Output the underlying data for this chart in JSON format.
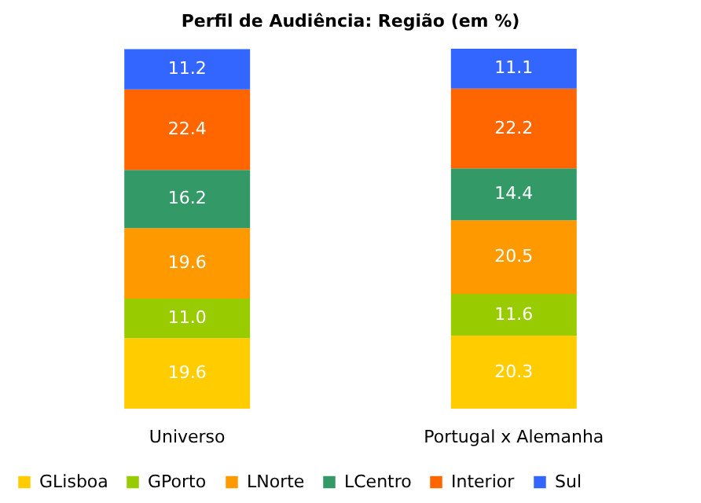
{
  "chart_data": {
    "type": "bar",
    "title": "Perfil de Audiência: Região (em %)",
    "categories": [
      "Universo",
      "Portugal x Alemanha"
    ],
    "stacked": true,
    "legend": "bottom",
    "grid": false,
    "tick_labels": "x",
    "series": [
      {
        "name": "GLisboa",
        "color": "#ffcc00",
        "values": [
          19.6,
          20.3
        ],
        "value_labels": [
          "19.6",
          "20.3"
        ]
      },
      {
        "name": "GPorto",
        "color": "#99cc00",
        "values": [
          11.0,
          11.6
        ],
        "value_labels": [
          "11.0",
          "11.6"
        ]
      },
      {
        "name": "LNorte",
        "color": "#ff9900",
        "values": [
          19.6,
          20.5
        ],
        "value_labels": [
          "19.6",
          "20.5"
        ]
      },
      {
        "name": "LCentro",
        "color": "#339966",
        "values": [
          16.2,
          14.4
        ],
        "value_labels": [
          "16.2",
          "14.4"
        ]
      },
      {
        "name": "Interior",
        "color": "#ff6600",
        "values": [
          22.4,
          22.2
        ],
        "value_labels": [
          "22.4",
          "22.2"
        ]
      },
      {
        "name": "Sul",
        "color": "#3366ff",
        "values": [
          11.2,
          11.1
        ],
        "value_labels": [
          "11.2",
          "11.1"
        ]
      }
    ]
  }
}
